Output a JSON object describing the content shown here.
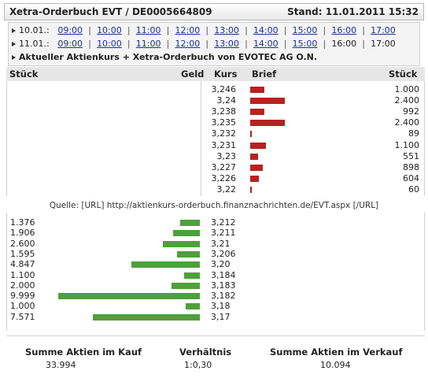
{
  "header": {
    "title": "Xetra-Orderbuch EVT / DE0005664809",
    "stand": "Stand: 11.01.2011 15:32"
  },
  "dates": [
    {
      "label": "10.01.:",
      "times": [
        "09:00",
        "10:00",
        "11:00",
        "12:00",
        "13:00",
        "14:00",
        "15:00",
        "16:00",
        "17:00"
      ],
      "linked": [
        true,
        true,
        true,
        true,
        true,
        true,
        true,
        true,
        true
      ]
    },
    {
      "label": "11.01.:",
      "times": [
        "09:00",
        "10:00",
        "11:00",
        "12:00",
        "13:00",
        "14:00",
        "15:00",
        "16:00",
        "17:00"
      ],
      "linked": [
        true,
        true,
        true,
        true,
        true,
        true,
        true,
        false,
        false
      ]
    }
  ],
  "current_link": "Aktueller Aktienkurs + Xetra-Orderbuch von EVOTEC AG O.N.",
  "columns": {
    "stueck_left": "Stück",
    "geld": "Geld",
    "kurs": "Kurs",
    "brief": "Brief",
    "stueck_right": "Stück"
  },
  "asks": [
    {
      "price": "3,246",
      "qty": "1.000",
      "value": 1000
    },
    {
      "price": "3,24",
      "qty": "2.400",
      "value": 2400
    },
    {
      "price": "3,238",
      "qty": "992",
      "value": 992
    },
    {
      "price": "3,235",
      "qty": "2.400",
      "value": 2400
    },
    {
      "price": "3,232",
      "qty": "89",
      "value": 89
    },
    {
      "price": "3,231",
      "qty": "1.100",
      "value": 1100
    },
    {
      "price": "3,23",
      "qty": "551",
      "value": 551
    },
    {
      "price": "3,227",
      "qty": "898",
      "value": 898
    },
    {
      "price": "3,226",
      "qty": "604",
      "value": 604
    },
    {
      "price": "3,22",
      "qty": "60",
      "value": 60
    }
  ],
  "quelle": "Quelle: [URL] http://aktienkurs-orderbuch.finanznachrichten.de/EVT.aspx [/URL]",
  "bids": [
    {
      "price": "3,212",
      "qty": "1.376",
      "value": 1376
    },
    {
      "price": "3,211",
      "qty": "1.906",
      "value": 1906
    },
    {
      "price": "3,21",
      "qty": "2.600",
      "value": 2600
    },
    {
      "price": "3,206",
      "qty": "1.595",
      "value": 1595
    },
    {
      "price": "3,20",
      "qty": "4.847",
      "value": 4847
    },
    {
      "price": "3,184",
      "qty": "1.100",
      "value": 1100
    },
    {
      "price": "3,183",
      "qty": "2.000",
      "value": 2000
    },
    {
      "price": "3,182",
      "qty": "9.999",
      "value": 9999
    },
    {
      "price": "3,18",
      "qty": "1.000",
      "value": 1000
    },
    {
      "price": "3,17",
      "qty": "7.571",
      "value": 7571
    }
  ],
  "summary": {
    "kauf_label": "Summe Aktien im Kauf",
    "kauf_value": "33.994",
    "ratio_label": "Verhältnis",
    "ratio_value": "1:0,30",
    "verkauf_label": "Summe Aktien im Verkauf",
    "verkauf_value": "10.094"
  },
  "colors": {
    "ask_bar": "#b82222",
    "bid_bar": "#4ea03b",
    "link": "#1a2f99"
  }
}
